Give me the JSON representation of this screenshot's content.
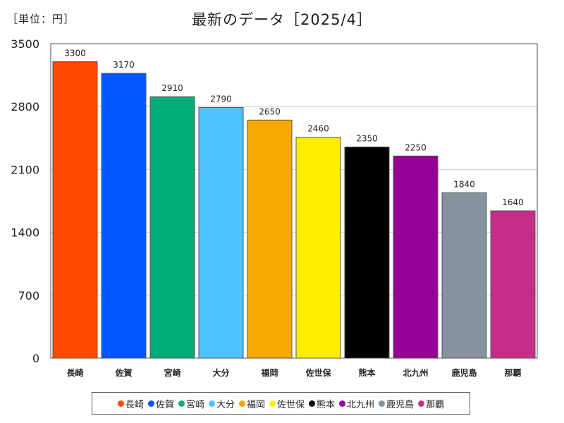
{
  "header": {
    "unit_label": "［単位：円］",
    "title": "最新のデータ［2025/4］"
  },
  "chart_data": {
    "type": "bar",
    "title": "最新のデータ［2025/4］",
    "unit": "［単位：円］",
    "xlabel": "",
    "ylabel": "",
    "categories": [
      "長崎",
      "佐賀",
      "宮崎",
      "大分",
      "福岡",
      "佐世保",
      "熊本",
      "北九州",
      "鹿児島",
      "那覇"
    ],
    "values": [
      3300,
      3170,
      2910,
      2790,
      2650,
      2460,
      2350,
      2250,
      1840,
      1640
    ],
    "colors": [
      "#ff4a00",
      "#0057ff",
      "#00ad76",
      "#4fc3ff",
      "#f5a800",
      "#ffee00",
      "#000000",
      "#950096",
      "#8593a0",
      "#c62d8b"
    ],
    "ylim": [
      0,
      3500
    ],
    "yticks": [
      0,
      700,
      1400,
      2100,
      2800,
      3500
    ],
    "grid": true,
    "data_labels": true,
    "legend_position": "bottom"
  }
}
